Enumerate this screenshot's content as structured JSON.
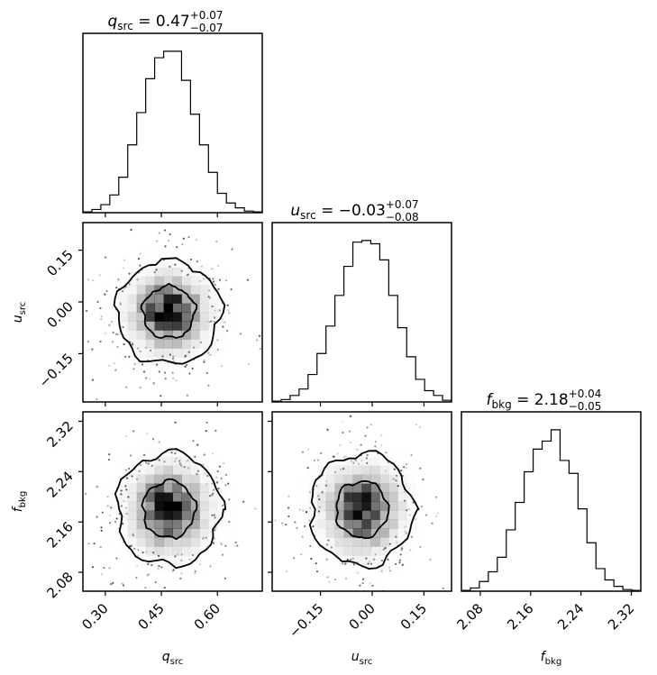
{
  "chart_data": {
    "type": "corner",
    "parameters": [
      {
        "key": "q",
        "symbol": "q",
        "subscript": "src",
        "median": "0.47",
        "err_plus": "+0.07",
        "err_minus": "−0.07",
        "range": [
          0.24,
          0.72
        ],
        "ticks": [
          "0.30",
          "0.45",
          "0.60"
        ],
        "tick_values": [
          0.3,
          0.45,
          0.6
        ]
      },
      {
        "key": "u",
        "symbol": "u",
        "subscript": "src",
        "median": "−0.03",
        "err_plus": "+0.07",
        "err_minus": "−0.08",
        "range": [
          -0.29,
          0.23
        ],
        "ticks": [
          "−0.15",
          "0.00",
          "0.15"
        ],
        "tick_values": [
          -0.15,
          0.0,
          0.15
        ]
      },
      {
        "key": "f",
        "symbol": "f",
        "subscript": "bkg",
        "median": "2.18",
        "err_plus": "+0.04",
        "err_minus": "−0.05",
        "range": [
          2.05,
          2.335
        ],
        "ticks": [
          "2.08",
          "2.16",
          "2.24",
          "2.32"
        ],
        "tick_values": [
          2.08,
          2.16,
          2.24,
          2.32
        ]
      }
    ],
    "histograms": {
      "q": {
        "edges": [
          0.24,
          0.264,
          0.288,
          0.312,
          0.336,
          0.36,
          0.384,
          0.408,
          0.432,
          0.456,
          0.48,
          0.504,
          0.528,
          0.552,
          0.576,
          0.6,
          0.624,
          0.648,
          0.672,
          0.696,
          0.72
        ],
        "counts": [
          0.5,
          2,
          5,
          11,
          22,
          42,
          62,
          83,
          96,
          100,
          100,
          82,
          61,
          42,
          25,
          12,
          6,
          3,
          1,
          0.5
        ]
      },
      "u": {
        "edges": [
          -0.29,
          -0.264,
          -0.238,
          -0.212,
          -0.186,
          -0.16,
          -0.134,
          -0.108,
          -0.082,
          -0.056,
          -0.03,
          -0.004,
          0.022,
          0.048,
          0.074,
          0.1,
          0.126,
          0.152,
          0.178,
          0.204,
          0.23
        ],
        "counts": [
          0.5,
          1.5,
          4,
          8,
          17,
          30,
          47,
          66,
          84,
          99,
          100,
          98,
          88,
          66,
          46,
          28,
          14,
          7,
          4,
          1
        ]
      },
      "f": {
        "edges": [
          2.05,
          2.06425,
          2.0785,
          2.09275,
          2.107,
          2.12125,
          2.1355,
          2.14975,
          2.164,
          2.17825,
          2.1925,
          2.20675,
          2.221,
          2.23525,
          2.2495,
          2.26375,
          2.278,
          2.29225,
          2.3065,
          2.32075,
          2.335
        ],
        "counts": [
          0.5,
          2,
          6,
          12,
          21,
          38,
          55,
          74,
          88,
          93,
          100,
          81,
          73,
          51,
          30,
          14,
          7,
          3,
          1,
          0.5
        ]
      }
    },
    "axis_labels": {
      "x": [
        {
          "symbol": "q",
          "subscript": "src"
        },
        {
          "symbol": "u",
          "subscript": "src"
        },
        {
          "symbol": "f",
          "subscript": "bkg"
        }
      ],
      "y": [
        {
          "symbol": "u",
          "subscript": "src"
        },
        {
          "symbol": "f",
          "subscript": "bkg"
        }
      ]
    },
    "colors": {
      "line": "#000000",
      "density": "#000000",
      "background": "#ffffff"
    }
  }
}
